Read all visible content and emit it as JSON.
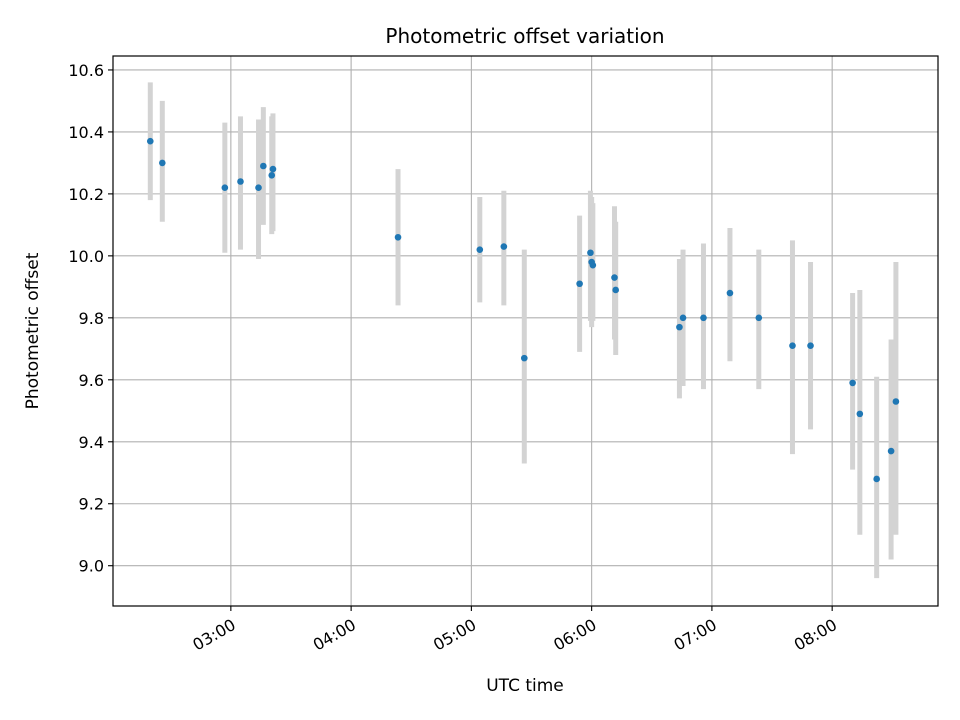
{
  "chart_data": {
    "type": "scatter",
    "title": "Photometric offset variation",
    "xlabel": "UTC time",
    "ylabel": "Photometric offset",
    "x_unit": "hours (UTC)",
    "xlim": [
      2.02,
      8.88
    ],
    "ylim": [
      8.87,
      10.645
    ],
    "xticks": [
      3,
      4,
      5,
      6,
      7,
      8
    ],
    "xtick_labels": [
      "03:00",
      "04:00",
      "05:00",
      "06:00",
      "07:00",
      "08:00"
    ],
    "yticks": [
      9.0,
      9.2,
      9.4,
      9.6,
      9.8,
      10.0,
      10.2,
      10.4,
      10.6
    ],
    "ytick_labels": [
      "9.0",
      "9.2",
      "9.4",
      "9.6",
      "9.8",
      "10.0",
      "10.2",
      "10.4",
      "10.6"
    ],
    "grid": true,
    "point_color": "#1f77b4",
    "errorbar_color": "#d3d3d3",
    "points": [
      {
        "x": 2.33,
        "y": 10.37,
        "lo": 10.18,
        "hi": 10.56
      },
      {
        "x": 2.43,
        "y": 10.3,
        "lo": 10.11,
        "hi": 10.5
      },
      {
        "x": 2.95,
        "y": 10.22,
        "lo": 10.01,
        "hi": 10.43
      },
      {
        "x": 3.08,
        "y": 10.24,
        "lo": 10.02,
        "hi": 10.45
      },
      {
        "x": 3.23,
        "y": 10.22,
        "lo": 9.99,
        "hi": 10.44
      },
      {
        "x": 3.27,
        "y": 10.29,
        "lo": 10.1,
        "hi": 10.48
      },
      {
        "x": 3.34,
        "y": 10.26,
        "lo": 10.07,
        "hi": 10.45
      },
      {
        "x": 3.35,
        "y": 10.28,
        "lo": 10.08,
        "hi": 10.46
      },
      {
        "x": 4.39,
        "y": 10.06,
        "lo": 9.84,
        "hi": 10.28
      },
      {
        "x": 5.07,
        "y": 10.02,
        "lo": 9.85,
        "hi": 10.19
      },
      {
        "x": 5.27,
        "y": 10.03,
        "lo": 9.84,
        "hi": 10.21
      },
      {
        "x": 5.44,
        "y": 9.67,
        "lo": 9.33,
        "hi": 10.02
      },
      {
        "x": 5.9,
        "y": 9.91,
        "lo": 9.69,
        "hi": 10.13
      },
      {
        "x": 5.99,
        "y": 10.01,
        "lo": 9.79,
        "hi": 10.21
      },
      {
        "x": 6.0,
        "y": 9.98,
        "lo": 9.77,
        "hi": 10.19
      },
      {
        "x": 6.01,
        "y": 9.97,
        "lo": 9.79,
        "hi": 10.17
      },
      {
        "x": 6.19,
        "y": 9.93,
        "lo": 9.73,
        "hi": 10.16
      },
      {
        "x": 6.2,
        "y": 9.89,
        "lo": 9.68,
        "hi": 10.11
      },
      {
        "x": 6.73,
        "y": 9.77,
        "lo": 9.54,
        "hi": 9.99
      },
      {
        "x": 6.76,
        "y": 9.8,
        "lo": 9.58,
        "hi": 10.02
      },
      {
        "x": 6.93,
        "y": 9.8,
        "lo": 9.57,
        "hi": 10.04
      },
      {
        "x": 7.15,
        "y": 9.88,
        "lo": 9.66,
        "hi": 10.09
      },
      {
        "x": 7.39,
        "y": 9.8,
        "lo": 9.57,
        "hi": 10.02
      },
      {
        "x": 7.67,
        "y": 9.71,
        "lo": 9.36,
        "hi": 10.05
      },
      {
        "x": 7.82,
        "y": 9.71,
        "lo": 9.44,
        "hi": 9.98
      },
      {
        "x": 8.17,
        "y": 9.59,
        "lo": 9.31,
        "hi": 9.88
      },
      {
        "x": 8.23,
        "y": 9.49,
        "lo": 9.1,
        "hi": 9.89
      },
      {
        "x": 8.37,
        "y": 9.28,
        "lo": 8.96,
        "hi": 9.61
      },
      {
        "x": 8.49,
        "y": 9.37,
        "lo": 9.02,
        "hi": 9.73
      },
      {
        "x": 8.53,
        "y": 9.53,
        "lo": 9.1,
        "hi": 9.98
      }
    ]
  }
}
